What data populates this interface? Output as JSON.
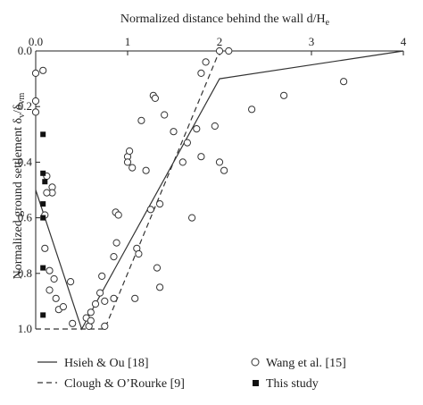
{
  "chart_data": {
    "type": "scatter",
    "xlabel": "Normalized distance behind the wall d/H",
    "xlabel_sub": "e",
    "ylabel": "Normalized ground settlement δ",
    "ylabel_sub1": "v",
    "ylabel_mid": "/δ",
    "ylabel_sub2": "vm",
    "x_axis_position": "top",
    "y_inverted": true,
    "xlim": [
      0,
      4
    ],
    "ylim": [
      0,
      1
    ],
    "x_ticks": [
      {
        "v": 0,
        "label": "0.0"
      },
      {
        "v": 1,
        "label": "1"
      },
      {
        "v": 2,
        "label": "2"
      },
      {
        "v": 3,
        "label": "3"
      },
      {
        "v": 4,
        "label": "4"
      }
    ],
    "y_ticks": [
      {
        "v": 0.0,
        "label": "0.0"
      },
      {
        "v": 0.2,
        "label": "0.2"
      },
      {
        "v": 0.4,
        "label": "0.4"
      },
      {
        "v": 0.6,
        "label": "0.6"
      },
      {
        "v": 0.8,
        "label": "0.8"
      },
      {
        "v": 1.0,
        "label": "1.0"
      }
    ],
    "grid": false,
    "legend": {
      "placement": "bottom",
      "entries": [
        {
          "label": "Hsieh & Ou [18]",
          "marker": "solid-line"
        },
        {
          "label": "Clough & O’Rourke [9]",
          "marker": "dashed-line"
        },
        {
          "label": "Wang et al. [15]",
          "marker": "open-circle"
        },
        {
          "label": "This study",
          "marker": "filled-square"
        }
      ]
    },
    "series": [
      {
        "name": "Hsieh & Ou [18]",
        "kind": "line",
        "style": "solid",
        "points": [
          [
            0,
            0.5
          ],
          [
            0.5,
            1.0
          ],
          [
            2.0,
            0.1
          ],
          [
            4.0,
            0.0
          ]
        ]
      },
      {
        "name": "Clough & O’Rourke [9]",
        "kind": "line",
        "style": "dashed",
        "points": [
          [
            0,
            1.0
          ],
          [
            0.75,
            1.0
          ],
          [
            2.0,
            0.0
          ]
        ]
      },
      {
        "name": "Wang et al. [15]",
        "kind": "scatter",
        "marker": "open-circle",
        "points": [
          [
            0.0,
            0.08
          ],
          [
            0.08,
            0.07
          ],
          [
            0.0,
            0.18
          ],
          [
            0.0,
            0.22
          ],
          [
            0.12,
            0.45
          ],
          [
            0.18,
            0.49
          ],
          [
            0.18,
            0.51
          ],
          [
            0.12,
            0.51
          ],
          [
            0.1,
            0.59
          ],
          [
            0.1,
            0.71
          ],
          [
            0.15,
            0.79
          ],
          [
            0.15,
            0.86
          ],
          [
            0.2,
            0.82
          ],
          [
            0.22,
            0.89
          ],
          [
            0.25,
            0.93
          ],
          [
            0.3,
            0.92
          ],
          [
            0.38,
            0.83
          ],
          [
            0.4,
            0.98
          ],
          [
            0.55,
            0.96
          ],
          [
            0.6,
            0.94
          ],
          [
            0.65,
            0.91
          ],
          [
            0.7,
            0.87
          ],
          [
            0.72,
            0.81
          ],
          [
            0.58,
            0.99
          ],
          [
            0.6,
            0.97
          ],
          [
            0.75,
            0.99
          ],
          [
            0.75,
            0.9
          ],
          [
            0.85,
            0.89
          ],
          [
            0.85,
            0.74
          ],
          [
            0.88,
            0.69
          ],
          [
            0.87,
            0.58
          ],
          [
            0.9,
            0.59
          ],
          [
            1.0,
            0.38
          ],
          [
            1.0,
            0.4
          ],
          [
            1.02,
            0.36
          ],
          [
            1.05,
            0.42
          ],
          [
            1.08,
            0.89
          ],
          [
            1.1,
            0.71
          ],
          [
            1.12,
            0.73
          ],
          [
            1.15,
            0.25
          ],
          [
            1.2,
            0.43
          ],
          [
            1.25,
            0.57
          ],
          [
            1.28,
            0.16
          ],
          [
            1.3,
            0.17
          ],
          [
            1.35,
            0.55
          ],
          [
            1.32,
            0.78
          ],
          [
            1.35,
            0.85
          ],
          [
            1.4,
            0.23
          ],
          [
            1.5,
            0.29
          ],
          [
            1.6,
            0.4
          ],
          [
            1.65,
            0.33
          ],
          [
            1.7,
            0.6
          ],
          [
            1.75,
            0.28
          ],
          [
            1.8,
            0.08
          ],
          [
            1.8,
            0.38
          ],
          [
            1.85,
            0.04
          ],
          [
            1.95,
            0.27
          ],
          [
            2.0,
            0.4
          ],
          [
            2.05,
            0.43
          ],
          [
            2.0,
            0.0
          ],
          [
            2.1,
            0.0
          ],
          [
            2.35,
            0.21
          ],
          [
            2.7,
            0.16
          ],
          [
            3.35,
            0.11
          ]
        ]
      },
      {
        "name": "This study",
        "kind": "scatter",
        "marker": "filled-square",
        "points": [
          [
            0.08,
            0.3
          ],
          [
            0.08,
            0.44
          ],
          [
            0.1,
            0.47
          ],
          [
            0.08,
            0.55
          ],
          [
            0.08,
            0.6
          ],
          [
            0.08,
            0.78
          ],
          [
            0.08,
            0.95
          ]
        ]
      }
    ]
  }
}
